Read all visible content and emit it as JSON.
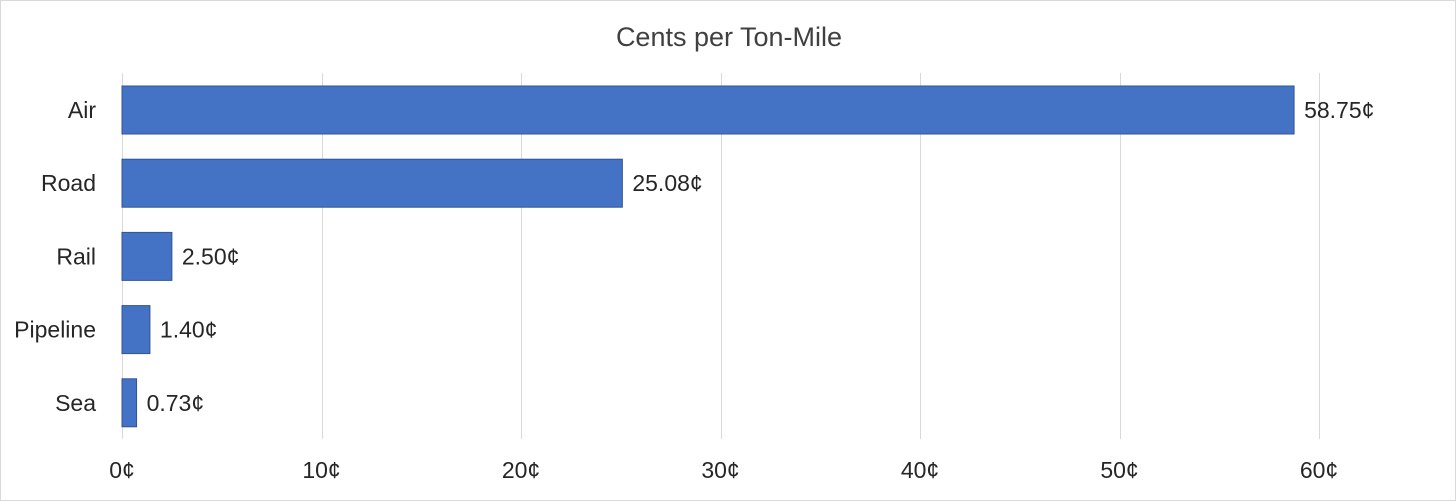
{
  "chart_data": {
    "type": "bar",
    "orientation": "horizontal",
    "title": "Cents per Ton-Mile",
    "xlabel": "",
    "ylabel": "",
    "categories": [
      "Air",
      "Road",
      "Rail",
      "Pipeline",
      "Sea"
    ],
    "values": [
      58.75,
      25.08,
      2.5,
      1.4,
      0.73
    ],
    "data_labels": [
      "58.75¢",
      "25.08¢",
      "2.50¢",
      "1.40¢",
      "0.73¢"
    ],
    "xlim": [
      0,
      60
    ],
    "x_ticks": [
      0,
      10,
      20,
      30,
      40,
      50,
      60
    ],
    "x_tick_labels": [
      "0¢",
      "10¢",
      "20¢",
      "30¢",
      "40¢",
      "50¢",
      "60¢"
    ],
    "grid": "vertical",
    "legend": "none",
    "colors": {
      "bar_fill": "#4472c4",
      "bar_stroke": "#2f5597",
      "gridline": "#d9d9d9",
      "title": "#404040",
      "text": "#262626"
    }
  }
}
